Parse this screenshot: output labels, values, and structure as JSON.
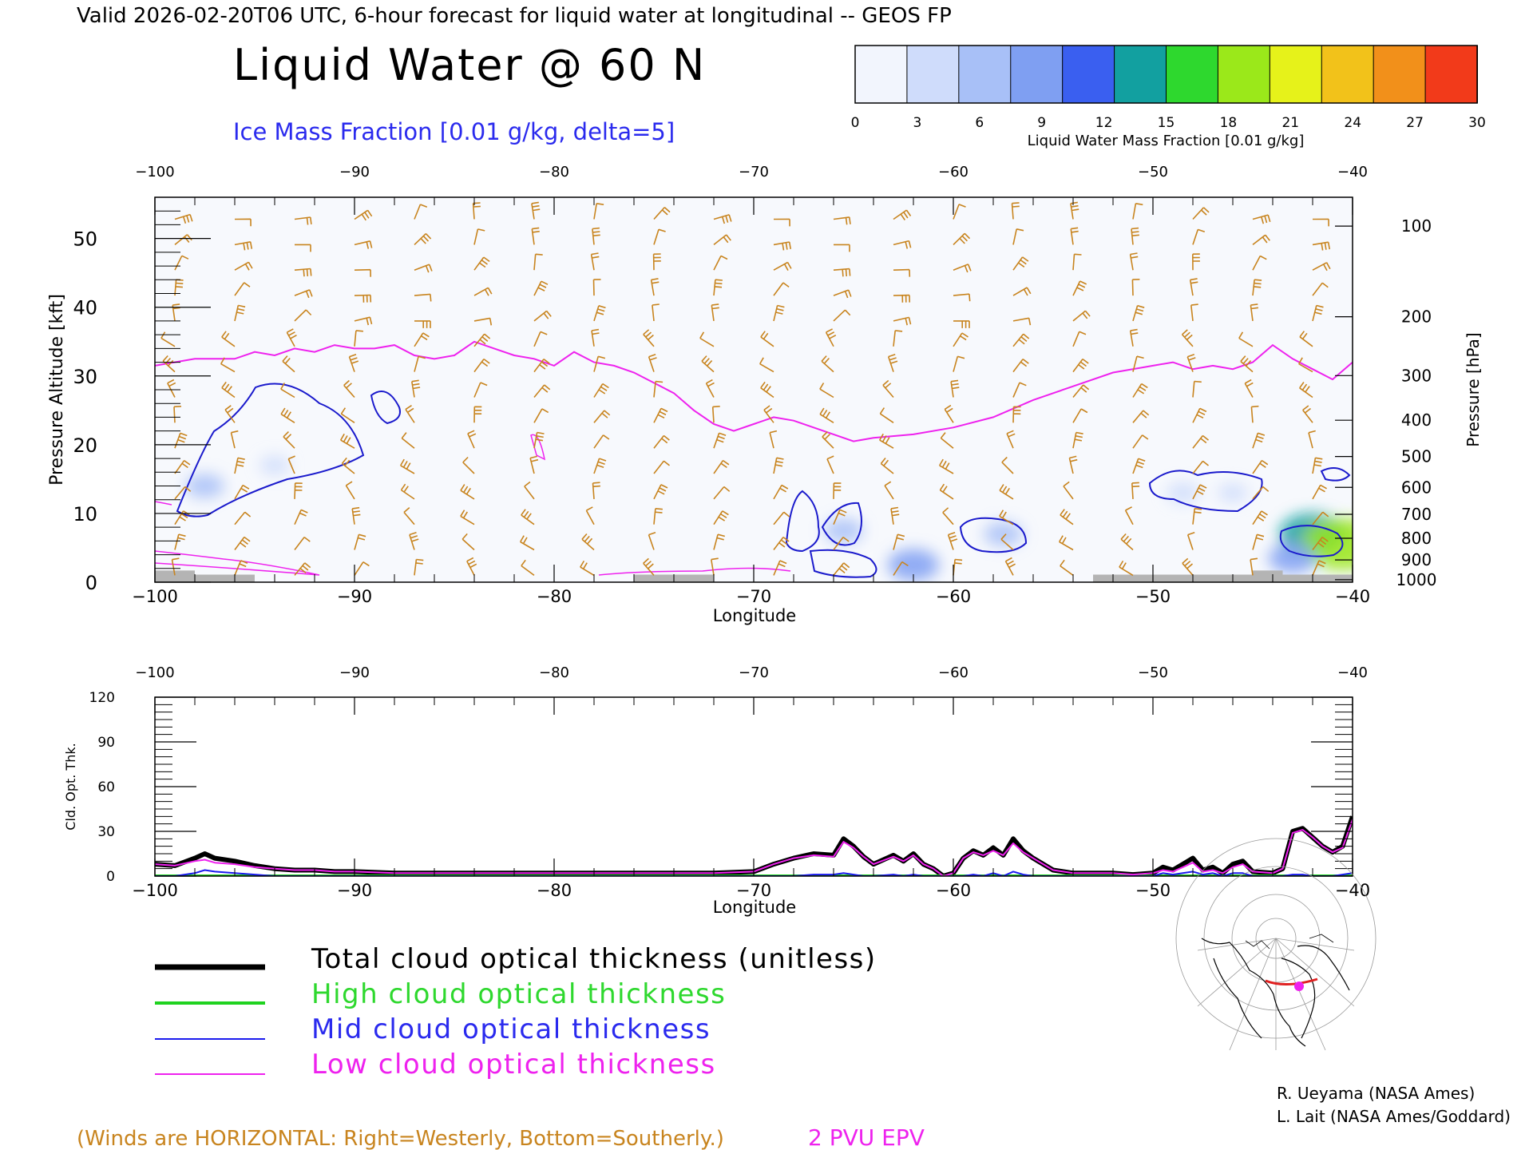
{
  "header": {
    "valid_line": "Valid 2026-02-20T06 UTC, 6-hour forecast for liquid water at longitudinal -- GEOS FP",
    "main_title": "Liquid Water @ 60 N",
    "subtitle": "Ice Mass Fraction [0.01 g/kg, delta=5]"
  },
  "colorbar": {
    "label": "Liquid Water Mass Fraction [0.01 g/kg]",
    "ticks": [
      "0",
      "3",
      "6",
      "9",
      "12",
      "15",
      "18",
      "21",
      "24",
      "27",
      "30"
    ],
    "colors": [
      "#f2f5fd",
      "#cfdcfb",
      "#a8c0f7",
      "#7f9ff2",
      "#3a5ff0",
      "#12a0a0",
      "#2ed82e",
      "#9be81a",
      "#e6f21a",
      "#f2c21a",
      "#f2901a",
      "#f23a1a"
    ]
  },
  "colors": {
    "wind": "#c8841e",
    "epv": "#e020e0",
    "ice_contour": "#1a1acc",
    "terrain": "#b4b4b4",
    "total_line": "#000000",
    "high_line": "#1fd21f",
    "mid_line": "#1a1aee",
    "low_line": "#ee22ee"
  },
  "legend": {
    "total": "Total cloud optical thickness (unitless)",
    "high": "High cloud optical thickness",
    "mid": "Mid cloud optical thickness",
    "low": "Low cloud optical thickness"
  },
  "footer": {
    "winds_note": "(Winds are HORIZONTAL: Right=Westerly, Bottom=Southerly.)",
    "epv_label": "2 PVU EPV",
    "credit1": "R. Ueyama (NASA Ames)",
    "credit2": "L. Lait (NASA Ames/Goddard)"
  },
  "chart_data": [
    {
      "type": "heatmap",
      "title": "Liquid Water @ 60 N",
      "xlabel": "Longitude",
      "ylabel_left": "Pressure Altitude [kft]",
      "ylabel_right": "Pressure [hPa]",
      "xlim": [
        -100,
        -40
      ],
      "ylim": [
        0,
        56
      ],
      "x_ticks": [
        "-100",
        "-90",
        "-80",
        "-70",
        "-60",
        "-50",
        "-40"
      ],
      "y_ticks": [
        "0",
        "10",
        "20",
        "30",
        "40",
        "50"
      ],
      "pressure_ticks": [
        "100",
        "200",
        "300",
        "400",
        "500",
        "600",
        "700",
        "800",
        "900",
        "1000"
      ],
      "epv_2pvu_kft": [
        [
          -100,
          31.5
        ],
        [
          -98,
          32.5
        ],
        [
          -96,
          32.5
        ],
        [
          -95,
          33.5
        ],
        [
          -94,
          33
        ],
        [
          -93,
          34
        ],
        [
          -92,
          33.5
        ],
        [
          -91,
          34.5
        ],
        [
          -90,
          34
        ],
        [
          -89,
          34
        ],
        [
          -88,
          34.5
        ],
        [
          -87,
          33
        ],
        [
          -86,
          32.5
        ],
        [
          -85,
          33
        ],
        [
          -84,
          35
        ],
        [
          -83,
          34
        ],
        [
          -82,
          33
        ],
        [
          -81,
          32.5
        ],
        [
          -80,
          31.5
        ],
        [
          -79,
          33.5
        ],
        [
          -78,
          32
        ],
        [
          -77,
          31.5
        ],
        [
          -76,
          30.5
        ],
        [
          -75,
          29
        ],
        [
          -74,
          27.5
        ],
        [
          -73,
          25
        ],
        [
          -72,
          23
        ],
        [
          -71,
          22
        ],
        [
          -70,
          23
        ],
        [
          -69,
          24
        ],
        [
          -68,
          23.5
        ],
        [
          -67,
          22.5
        ],
        [
          -66,
          21.5
        ],
        [
          -65,
          20.5
        ],
        [
          -64,
          21
        ],
        [
          -62,
          21.5
        ],
        [
          -60,
          22.5
        ],
        [
          -58,
          24
        ],
        [
          -56,
          26.5
        ],
        [
          -54,
          28.5
        ],
        [
          -52,
          30.5
        ],
        [
          -50,
          31.5
        ],
        [
          -49,
          32
        ],
        [
          -48,
          31
        ],
        [
          -47,
          31.5
        ],
        [
          -46,
          31
        ],
        [
          -45,
          32
        ],
        [
          -44,
          34.5
        ],
        [
          -43,
          32.5
        ],
        [
          -42,
          31
        ],
        [
          -41,
          29.5
        ],
        [
          -40,
          32
        ]
      ],
      "liquid_water_blobs": [
        {
          "lon": -97.5,
          "kft": 14,
          "value": 6
        },
        {
          "lon": -94,
          "kft": 17,
          "value": 3
        },
        {
          "lon": -65.5,
          "kft": 7.5,
          "value": 6
        },
        {
          "lon": -62,
          "kft": 2.5,
          "value": 10
        },
        {
          "lon": -57.5,
          "kft": 7,
          "value": 6
        },
        {
          "lon": -48.5,
          "kft": 13,
          "value": 4
        },
        {
          "lon": -46,
          "kft": 13,
          "value": 3
        },
        {
          "lon": -42,
          "kft": 7,
          "value": 15
        },
        {
          "lon": -40.5,
          "kft": 5.5,
          "value": 20
        },
        {
          "lon": -43,
          "kft": 3.5,
          "value": 9
        }
      ]
    },
    {
      "type": "line",
      "xlabel": "Longitude",
      "ylabel": "Cld. Opt. Thk.",
      "xlim": [
        -100,
        -40
      ],
      "ylim": [
        0,
        120
      ],
      "x_ticks": [
        "-100",
        "-90",
        "-80",
        "-70",
        "-60",
        "-50",
        "-40"
      ],
      "y_ticks": [
        "0",
        "30",
        "60",
        "90",
        "120"
      ],
      "x": [
        -100,
        -99,
        -98,
        -97.5,
        -97,
        -96,
        -95,
        -94,
        -93,
        -92,
        -91,
        -90,
        -88,
        -85,
        -80,
        -75,
        -72,
        -70,
        -69,
        -68,
        -67,
        -66,
        -65.5,
        -65,
        -64.5,
        -64,
        -63,
        -62.5,
        -62,
        -61.5,
        -61,
        -60.5,
        -60,
        -59.5,
        -59,
        -58.5,
        -58,
        -57.5,
        -57,
        -56.5,
        -56,
        -55,
        -54,
        -53,
        -52,
        -51,
        -50,
        -49.5,
        -49,
        -48.5,
        -48,
        -47.5,
        -47,
        -46.5,
        -46,
        -45.5,
        -45,
        -44,
        -43.5,
        -43,
        -42.5,
        -42,
        -41.5,
        -41,
        -40.5,
        -40
      ],
      "series": [
        {
          "name": "Total cloud optical thickness (unitless)",
          "values": [
            8,
            7,
            12,
            15,
            12,
            10,
            7,
            5,
            4,
            4,
            3,
            3,
            2,
            2,
            2,
            2,
            2,
            3,
            8,
            12,
            15,
            14,
            25,
            20,
            13,
            8,
            14,
            10,
            15,
            8,
            5,
            0,
            2,
            12,
            17,
            14,
            19,
            14,
            25,
            17,
            12,
            4,
            2,
            2,
            2,
            1,
            2,
            6,
            4,
            8,
            12,
            4,
            6,
            2,
            8,
            10,
            3,
            2,
            5,
            30,
            32,
            26,
            20,
            16,
            20,
            40
          ]
        },
        {
          "name": "High cloud optical thickness",
          "values": [
            0,
            0,
            0,
            0,
            0,
            0,
            0,
            0,
            0,
            0,
            0,
            0,
            0,
            0,
            0,
            0,
            0,
            0,
            0,
            0,
            0,
            0,
            0,
            0,
            0,
            0,
            0,
            0,
            0,
            0,
            0,
            0,
            0,
            0,
            0,
            0,
            0,
            0,
            0,
            0,
            0,
            0,
            0,
            0,
            0,
            0,
            0,
            0,
            0,
            0,
            0,
            0,
            0,
            0,
            0,
            0,
            0,
            0,
            0,
            0,
            0,
            0,
            0,
            0,
            0,
            0
          ]
        },
        {
          "name": "Mid cloud optical thickness",
          "values": [
            0,
            0,
            2,
            4,
            3,
            2,
            1,
            0,
            0,
            0,
            0,
            0,
            0,
            0,
            0,
            0,
            0,
            0,
            0,
            0,
            1,
            1,
            2,
            1,
            0,
            0,
            1,
            0,
            1,
            0,
            0,
            0,
            0,
            0,
            1,
            0,
            2,
            0,
            3,
            1,
            0,
            0,
            0,
            0,
            0,
            0,
            0,
            2,
            1,
            2,
            3,
            1,
            2,
            0,
            2,
            2,
            0,
            0,
            0,
            1,
            1,
            0,
            0,
            0,
            1,
            2
          ]
        },
        {
          "name": "Low cloud optical thickness",
          "values": [
            8,
            7,
            10,
            11,
            9,
            8,
            6,
            5,
            4,
            4,
            3,
            3,
            2,
            2,
            2,
            2,
            2,
            3,
            8,
            12,
            14,
            13,
            23,
            19,
            13,
            8,
            13,
            10,
            14,
            8,
            5,
            0,
            2,
            12,
            16,
            14,
            17,
            14,
            22,
            16,
            12,
            4,
            2,
            2,
            2,
            1,
            2,
            4,
            3,
            6,
            9,
            3,
            4,
            2,
            6,
            8,
            3,
            2,
            5,
            29,
            31,
            26,
            20,
            16,
            19,
            38
          ]
        }
      ]
    }
  ]
}
